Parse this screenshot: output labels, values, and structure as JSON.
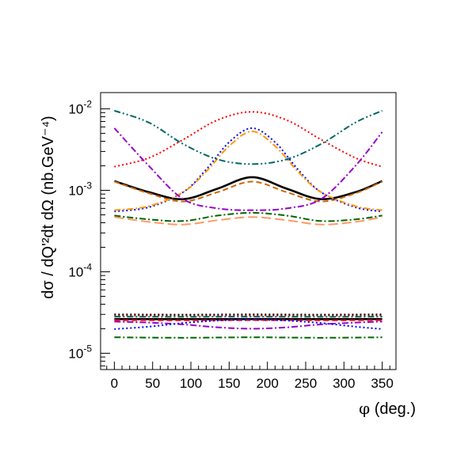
{
  "chart_data": {
    "type": "line",
    "xlabel_main": "φ",
    "xlabel_rest": " (deg.)",
    "ylabel": "dσ / dQ'²dt dΩ (nb.GeV⁻⁴)",
    "xlim": [
      -18,
      368
    ],
    "ylim_log10": [
      -5.2,
      -1.8
    ],
    "y_scale": "log",
    "x_ticks": [
      0,
      50,
      100,
      150,
      200,
      250,
      300,
      350
    ],
    "y_ticks": [
      {
        "exp": -5,
        "base": "10",
        "sup": "-5"
      },
      {
        "exp": -4,
        "base": "10",
        "sup": "-4"
      },
      {
        "exp": -3,
        "base": "10",
        "sup": "-3"
      },
      {
        "exp": -2,
        "base": "10",
        "sup": "-2"
      }
    ],
    "series": [
      {
        "color": "#000000",
        "style": "solid",
        "x": [
          0,
          45,
          90,
          135,
          180,
          225,
          270,
          315,
          350
        ],
        "y": [
          0.0013,
          0.00095,
          0.00078,
          0.00105,
          0.00145,
          0.00105,
          0.00078,
          0.00095,
          0.0013
        ]
      },
      {
        "color": "#cc6600",
        "style": "dashed",
        "x": [
          0,
          45,
          90,
          135,
          180,
          225,
          270,
          315,
          350
        ],
        "y": [
          0.00128,
          0.00092,
          0.00073,
          0.00095,
          0.00128,
          0.00095,
          0.00073,
          0.00092,
          0.00128
        ]
      },
      {
        "color": "#ff0000",
        "style": "dotted",
        "x": [
          0,
          45,
          90,
          135,
          180,
          225,
          270,
          315,
          350
        ],
        "y": [
          0.00195,
          0.0025,
          0.0042,
          0.0073,
          0.0092,
          0.0073,
          0.0042,
          0.0025,
          0.00195
        ]
      },
      {
        "color": "#0000ff",
        "style": "dotted",
        "x": [
          0,
          45,
          90,
          120,
          150,
          180,
          210,
          240,
          270,
          315,
          350
        ],
        "y": [
          0.00055,
          0.00062,
          0.00095,
          0.0018,
          0.0039,
          0.0058,
          0.0039,
          0.0018,
          0.00095,
          0.00062,
          0.00055
        ]
      },
      {
        "color": "#ff9900",
        "style": "dashdot",
        "x": [
          0,
          45,
          90,
          120,
          150,
          180,
          210,
          240,
          270,
          315,
          350
        ],
        "y": [
          0.00057,
          0.00064,
          0.00095,
          0.0017,
          0.0035,
          0.0053,
          0.0035,
          0.0017,
          0.00095,
          0.00064,
          0.00057
        ]
      },
      {
        "color": "#006666",
        "style": "dashdotdot",
        "x": [
          0,
          45,
          90,
          135,
          180,
          225,
          270,
          315,
          350
        ],
        "y": [
          0.0095,
          0.0068,
          0.0037,
          0.0024,
          0.0021,
          0.0024,
          0.0037,
          0.0068,
          0.0095
        ]
      },
      {
        "color": "#9900cc",
        "style": "dashdot",
        "x": [
          0,
          45,
          90,
          135,
          180,
          225,
          270,
          315,
          350
        ],
        "y": [
          0.0058,
          0.002,
          0.00078,
          0.0006,
          0.00057,
          0.0006,
          0.00078,
          0.002,
          0.0052
        ]
      },
      {
        "color": "#006600",
        "style": "dashdot",
        "x": [
          0,
          45,
          90,
          135,
          180,
          225,
          270,
          315,
          350
        ],
        "y": [
          0.00049,
          0.00044,
          0.00042,
          0.00049,
          0.00053,
          0.00049,
          0.00042,
          0.00044,
          0.00049
        ]
      },
      {
        "color": "#ff9966",
        "style": "longdash",
        "x": [
          0,
          45,
          90,
          135,
          180,
          225,
          270,
          315,
          350
        ],
        "y": [
          0.00047,
          0.00041,
          0.00038,
          0.00043,
          0.00047,
          0.00043,
          0.00038,
          0.00041,
          0.00047
        ]
      },
      {
        "color": "#ff0000",
        "style": "dotted",
        "x": [
          0,
          90,
          180,
          270,
          350
        ],
        "y": [
          2.9e-05,
          2.9e-05,
          2.9e-05,
          2.9e-05,
          2.9e-05
        ]
      },
      {
        "color": "#000000",
        "style": "dotted",
        "x": [
          0,
          90,
          180,
          270,
          350
        ],
        "y": [
          3e-05,
          2.98e-05,
          3e-05,
          2.98e-05,
          3e-05
        ]
      },
      {
        "color": "#006666",
        "style": "dashdot",
        "x": [
          0,
          90,
          180,
          270,
          350
        ],
        "y": [
          2.82e-05,
          2.8e-05,
          2.82e-05,
          2.8e-05,
          2.82e-05
        ]
      },
      {
        "color": "#000000",
        "style": "solid",
        "x": [
          0,
          90,
          180,
          270,
          350
        ],
        "y": [
          2.63e-05,
          2.62e-05,
          2.63e-05,
          2.62e-05,
          2.63e-05
        ]
      },
      {
        "color": "#ff0000",
        "style": "dashed",
        "x": [
          0,
          90,
          180,
          270,
          350
        ],
        "y": [
          2.55e-05,
          2.54e-05,
          2.55e-05,
          2.54e-05,
          2.55e-05
        ]
      },
      {
        "color": "#9900cc",
        "style": "dashdot",
        "x": [
          0,
          45,
          90,
          135,
          180,
          225,
          270,
          315,
          350
        ],
        "y": [
          2.45e-05,
          2.38e-05,
          2.26e-05,
          2.08e-05,
          2e-05,
          2.08e-05,
          2.26e-05,
          2.38e-05,
          2.45e-05
        ]
      },
      {
        "color": "#0000ff",
        "style": "dotted",
        "x": [
          0,
          45,
          90,
          135,
          180,
          225,
          270,
          315,
          350
        ],
        "y": [
          1.98e-05,
          2.12e-05,
          2.35e-05,
          2.52e-05,
          2.58e-05,
          2.52e-05,
          2.35e-05,
          2.12e-05,
          1.98e-05
        ]
      },
      {
        "color": "#006600",
        "style": "dashdot",
        "x": [
          0,
          90,
          180,
          270,
          350
        ],
        "y": [
          1.57e-05,
          1.55e-05,
          1.57e-05,
          1.55e-05,
          1.57e-05
        ]
      }
    ]
  }
}
